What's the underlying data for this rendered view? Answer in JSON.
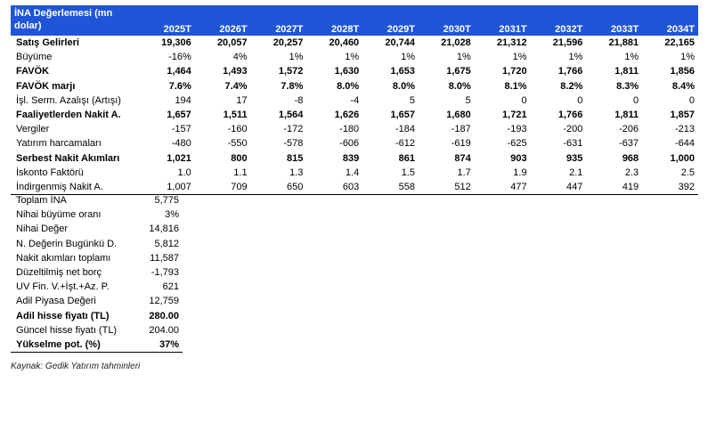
{
  "header": {
    "title": "İNA Değerlemesi (mn dolar)",
    "years": [
      "2025T",
      "2026T",
      "2027T",
      "2028T",
      "2029T",
      "2030T",
      "2031T",
      "2032T",
      "2033T",
      "2034T"
    ]
  },
  "rows": [
    {
      "label": "Satış Gelirleri",
      "bold": true,
      "values": [
        "19,306",
        "20,057",
        "20,257",
        "20,460",
        "20,744",
        "21,028",
        "21,312",
        "21,596",
        "21,881",
        "22,165"
      ]
    },
    {
      "label": "Büyüme",
      "bold": false,
      "values": [
        "-16%",
        "4%",
        "1%",
        "1%",
        "1%",
        "1%",
        "1%",
        "1%",
        "1%",
        "1%"
      ]
    },
    {
      "label": "FAVÖK",
      "bold": true,
      "values": [
        "1,464",
        "1,493",
        "1,572",
        "1,630",
        "1,653",
        "1,675",
        "1,720",
        "1,766",
        "1,811",
        "1,856"
      ]
    },
    {
      "label": "FAVÖK marjı",
      "bold": true,
      "values": [
        "7.6%",
        "7.4%",
        "7.8%",
        "8.0%",
        "8.0%",
        "8.0%",
        "8.1%",
        "8.2%",
        "8.3%",
        "8.4%"
      ]
    },
    {
      "label": "İşl. Serm. Azalışı (Artışı)",
      "bold": false,
      "values": [
        "194",
        "17",
        "-8",
        "-4",
        "5",
        "5",
        "0",
        "0",
        "0",
        "0"
      ]
    },
    {
      "label": "Faaliyetlerden Nakit A.",
      "bold": true,
      "values": [
        "1,657",
        "1,511",
        "1,564",
        "1,626",
        "1,657",
        "1,680",
        "1,721",
        "1,766",
        "1,811",
        "1,857"
      ]
    },
    {
      "label": "Vergiler",
      "bold": false,
      "values": [
        "-157",
        "-160",
        "-172",
        "-180",
        "-184",
        "-187",
        "-193",
        "-200",
        "-206",
        "-213"
      ]
    },
    {
      "label": "Yatırım harcamaları",
      "bold": false,
      "values": [
        "-480",
        "-550",
        "-578",
        "-606",
        "-612",
        "-619",
        "-625",
        "-631",
        "-637",
        "-644"
      ]
    },
    {
      "label": "Serbest Nakit Akımları",
      "bold": true,
      "values": [
        "1,021",
        "800",
        "815",
        "839",
        "861",
        "874",
        "903",
        "935",
        "968",
        "1,000"
      ]
    },
    {
      "label": "İskonto Faktörü",
      "bold": false,
      "values": [
        "1.0",
        "1.1",
        "1.3",
        "1.4",
        "1.5",
        "1.7",
        "1.9",
        "2.1",
        "2.3",
        "2.5"
      ]
    },
    {
      "label": "İndirgenmiş Nakit A.",
      "bold": false,
      "values": [
        "1,007",
        "709",
        "650",
        "603",
        "558",
        "512",
        "477",
        "447",
        "419",
        "392"
      ]
    }
  ],
  "summary": [
    {
      "label": "Toplam İNA",
      "value": "5,775",
      "bold": false
    },
    {
      "label": "Nihai büyüme oranı",
      "value": "3%",
      "bold": false
    },
    {
      "label": "Nihai Değer",
      "value": "14,816",
      "bold": false
    },
    {
      "label": "N. Değerin Bugünkü D.",
      "value": "5,812",
      "bold": false
    },
    {
      "label": "Nakit akımları toplamı",
      "value": "11,587",
      "bold": false
    },
    {
      "label": "Düzeltilmiş net borç",
      "value": "-1,793",
      "bold": false
    },
    {
      "label": "UV Fin. V.+İşt.+Az. P.",
      "value": "621",
      "bold": false
    },
    {
      "label": "Adil Piyasa Değeri",
      "value": "12,759",
      "bold": false
    },
    {
      "label": "Adil hisse fiyatı (TL)",
      "value": "280.00",
      "bold": true
    },
    {
      "label": "Güncel hisse fiyatı (TL)",
      "value": "204.00",
      "bold": false
    },
    {
      "label": "Yükselme pot. (%)",
      "value": "37%",
      "bold": true
    }
  ],
  "source": "Kaynak: Gedik Yatırım tahminleri",
  "colors": {
    "header_bg": "#1f55d6",
    "header_text": "#ffffff"
  }
}
